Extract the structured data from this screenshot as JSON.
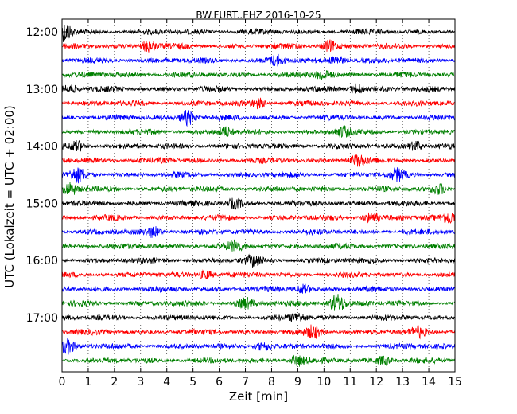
{
  "chart_data": {
    "type": "line",
    "title": "BW.FURT..EHZ 2016-10-25",
    "xlabel": "Zeit  [min]",
    "ylabel": "UTC (Lokalzeit = UTC + 02:00)",
    "xlim": [
      0,
      15
    ],
    "x_ticks": [
      "0",
      "1",
      "2",
      "3",
      "4",
      "5",
      "6",
      "7",
      "8",
      "9",
      "10",
      "11",
      "12",
      "13",
      "14",
      "15"
    ],
    "y_ticks": [
      "12:00",
      "13:00",
      "14:00",
      "15:00",
      "16:00",
      "17:00"
    ],
    "grid": "vertical dotted",
    "trace_interval_minutes": 15,
    "trace_colors": [
      "#000000",
      "#ff0000",
      "#0000ff",
      "#008000"
    ],
    "traces": [
      {
        "start": "12:00",
        "color": "#000000",
        "events": [
          [
            0.1,
            2.4
          ]
        ]
      },
      {
        "start": "12:15",
        "color": "#ff0000",
        "events": [
          [
            3.3,
            1.5
          ],
          [
            10.2,
            1.4
          ]
        ]
      },
      {
        "start": "12:30",
        "color": "#0000ff",
        "events": [
          [
            8.2,
            1.3
          ],
          [
            10.5,
            1.2
          ]
        ]
      },
      {
        "start": "12:45",
        "color": "#008000",
        "events": [
          [
            10.0,
            1.5
          ]
        ]
      },
      {
        "start": "13:00",
        "color": "#000000",
        "events": [
          [
            0.3,
            1.2
          ],
          [
            11.3,
            1.3
          ]
        ]
      },
      {
        "start": "13:15",
        "color": "#ff0000",
        "events": [
          [
            7.5,
            1.2
          ]
        ]
      },
      {
        "start": "13:30",
        "color": "#0000ff",
        "events": [
          [
            4.8,
            2.0
          ]
        ]
      },
      {
        "start": "13:45",
        "color": "#008000",
        "events": [
          [
            6.2,
            1.3
          ],
          [
            10.7,
            1.4
          ]
        ]
      },
      {
        "start": "14:00",
        "color": "#000000",
        "events": [
          [
            0.6,
            1.2
          ],
          [
            13.5,
            1.2
          ]
        ]
      },
      {
        "start": "14:15",
        "color": "#ff0000",
        "events": [
          [
            11.3,
            1.3
          ]
        ]
      },
      {
        "start": "14:30",
        "color": "#0000ff",
        "events": [
          [
            0.6,
            1.6
          ],
          [
            12.8,
            1.4
          ]
        ]
      },
      {
        "start": "14:45",
        "color": "#008000",
        "events": [
          [
            0.3,
            1.6
          ],
          [
            14.4,
            1.3
          ]
        ]
      },
      {
        "start": "15:00",
        "color": "#000000",
        "events": [
          [
            6.6,
            1.2
          ]
        ]
      },
      {
        "start": "15:15",
        "color": "#ff0000",
        "events": [
          [
            11.8,
            1.3
          ],
          [
            14.8,
            1.4
          ]
        ]
      },
      {
        "start": "15:30",
        "color": "#0000ff",
        "events": [
          [
            3.5,
            1.3
          ]
        ]
      },
      {
        "start": "15:45",
        "color": "#008000",
        "events": [
          [
            6.6,
            1.1
          ]
        ]
      },
      {
        "start": "16:00",
        "color": "#000000",
        "events": [
          [
            7.3,
            1.2
          ]
        ]
      },
      {
        "start": "16:15",
        "color": "#ff0000",
        "events": [
          [
            5.5,
            1.1
          ]
        ]
      },
      {
        "start": "16:30",
        "color": "#0000ff",
        "events": [
          [
            9.2,
            1.2
          ]
        ]
      },
      {
        "start": "16:45",
        "color": "#008000",
        "events": [
          [
            10.5,
            2.6
          ],
          [
            7.0,
            1.2
          ]
        ]
      },
      {
        "start": "17:00",
        "color": "#000000",
        "events": [
          [
            9.0,
            1.1
          ]
        ]
      },
      {
        "start": "17:15",
        "color": "#ff0000",
        "events": [
          [
            9.6,
            1.4
          ],
          [
            13.6,
            1.2
          ]
        ]
      },
      {
        "start": "17:30",
        "color": "#0000ff",
        "events": [
          [
            0.2,
            1.8
          ],
          [
            7.7,
            1.2
          ]
        ]
      },
      {
        "start": "17:45",
        "color": "#008000",
        "events": [
          [
            9.0,
            1.3
          ],
          [
            12.3,
            1.2
          ]
        ]
      }
    ]
  }
}
